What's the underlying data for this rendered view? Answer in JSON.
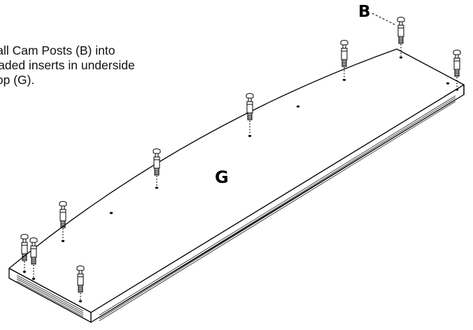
{
  "instruction": {
    "lines": [
      "Install Cam Posts (B) into",
      "threaded inserts in underside",
      "of Top (G)."
    ]
  },
  "labels": {
    "cam_post": "B",
    "top": "G"
  },
  "colors": {
    "line": "#000000",
    "background": "#ffffff"
  },
  "parts": {
    "cam_post_count": 9,
    "open_hole_count": 3
  }
}
